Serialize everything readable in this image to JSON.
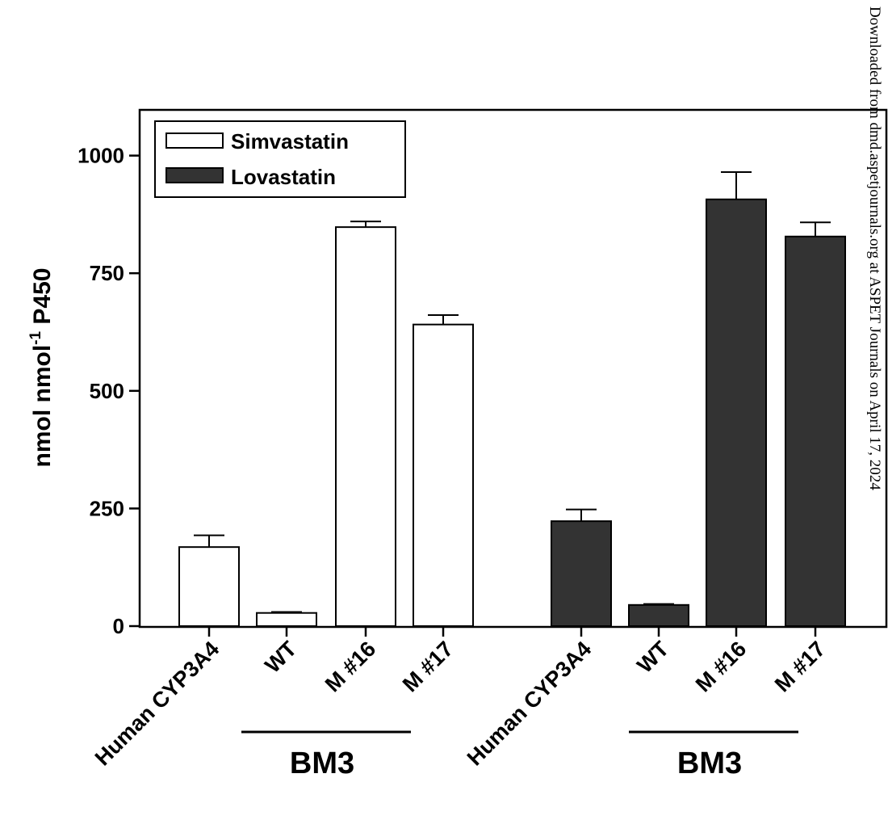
{
  "chart_data": {
    "type": "bar",
    "ylabel": "nmol nmol",
    "ylabel_sup": "-1",
    "ylabel_suffix": " P450",
    "ylim": [
      0,
      1100
    ],
    "yticks": [
      "0",
      "250",
      "500",
      "750",
      "1000"
    ],
    "ytick_values": [
      0,
      250,
      500,
      750,
      1000
    ],
    "legend": {
      "position": "top-left",
      "entries": [
        "Simvastatin",
        "Lovastatin"
      ]
    },
    "series": [
      {
        "name": "Simvastatin",
        "color": "#ffffff",
        "categories": [
          "Human CYP3A4",
          "WT",
          "M #16",
          "M #17"
        ],
        "values": [
          168,
          28,
          848,
          641
        ],
        "errors": [
          25,
          2,
          12,
          20
        ]
      },
      {
        "name": "Lovastatin",
        "color": "#333333",
        "categories": [
          "Human CYP3A4",
          "WT",
          "M #16",
          "M #17"
        ],
        "values": [
          223,
          45,
          907,
          828
        ],
        "errors": [
          25,
          2,
          58,
          30
        ]
      }
    ],
    "group_labels": [
      "BM3",
      "BM3"
    ]
  },
  "watermark": "Downloaded from dmd.aspetjournals.org at ASPET Journals on April 17, 2024"
}
